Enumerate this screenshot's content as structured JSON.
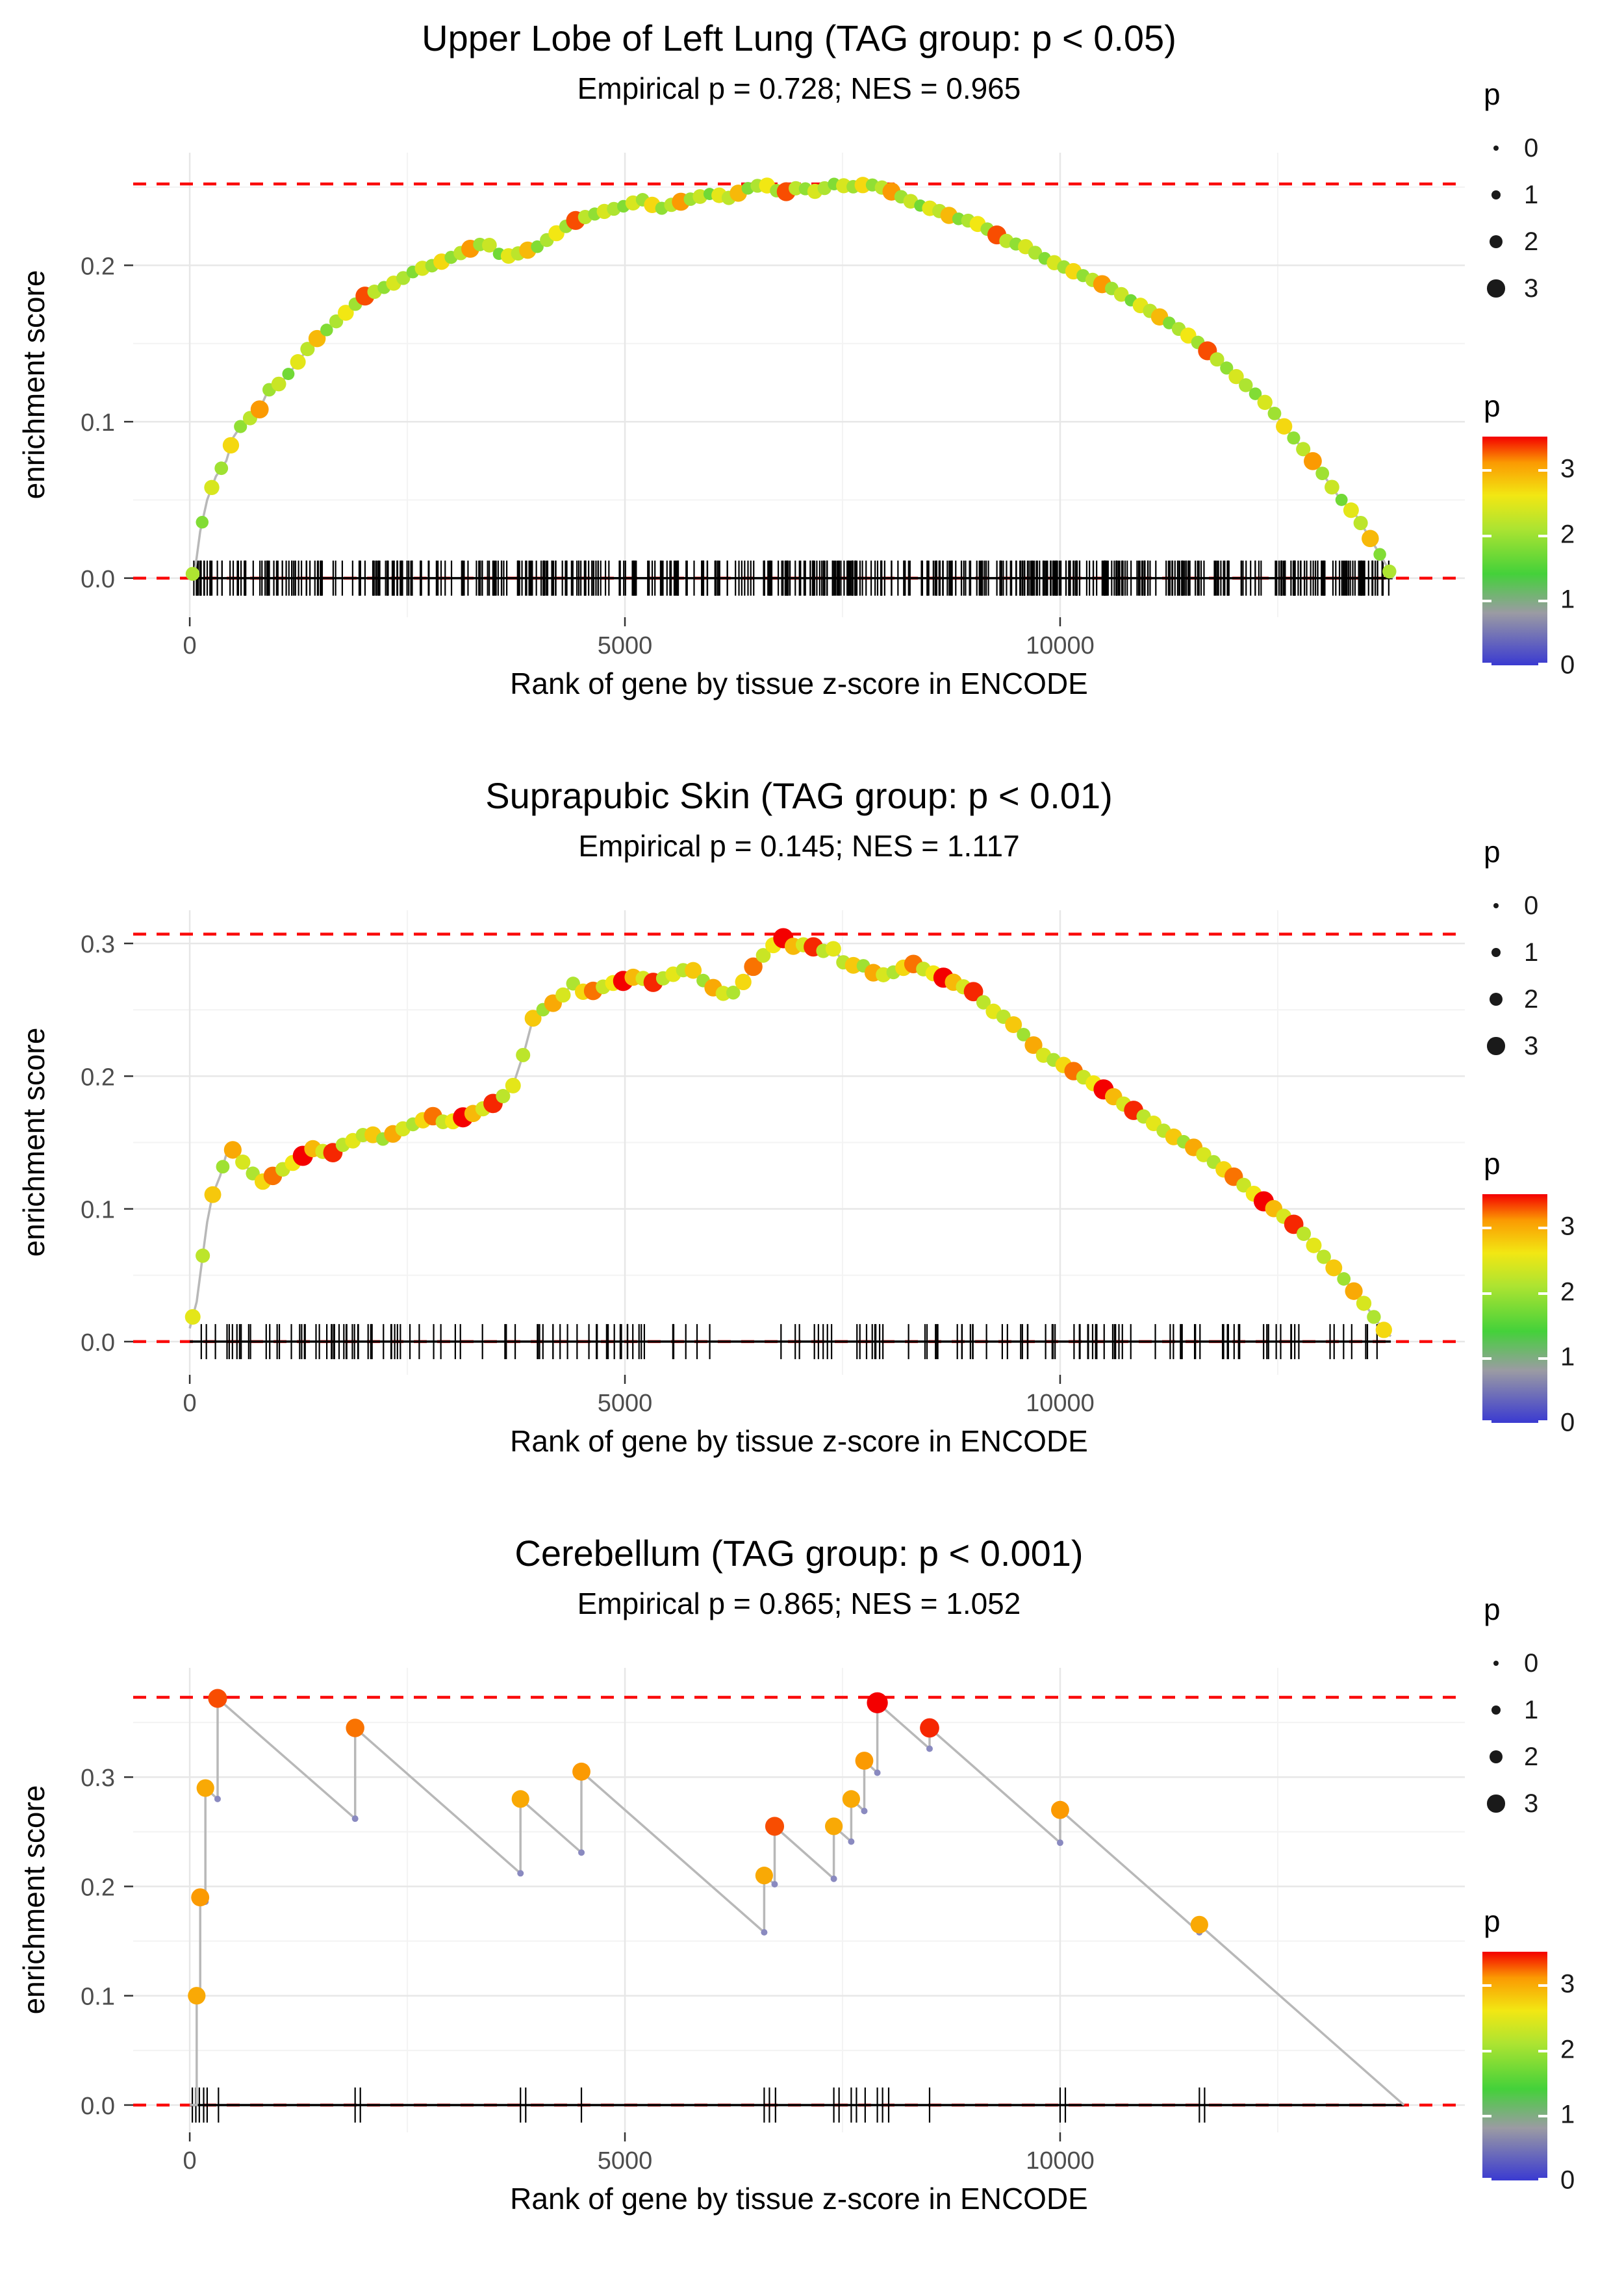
{
  "legend": {
    "size": {
      "title": "p",
      "items": [
        {
          "label": "0",
          "p": 0
        },
        {
          "label": "1",
          "p": 1
        },
        {
          "label": "2",
          "p": 2
        },
        {
          "label": "3",
          "p": 3
        }
      ]
    },
    "colorbar": {
      "title": "p",
      "range": [
        0,
        3.5
      ],
      "ticks": [
        {
          "label": "3",
          "value": 3
        },
        {
          "label": "2",
          "value": 2
        },
        {
          "label": "1",
          "value": 1
        },
        {
          "label": "0",
          "value": 0
        }
      ]
    }
  },
  "colors": {
    "dashed_line": "#fa0b0b",
    "curve": "#b8b8b8",
    "rug": "#000000",
    "zero_line": "#000000",
    "grid_major": "#e7e7e7",
    "grid_minor": "#f3f3f3",
    "jump_bottom_dot": "#8a8ac0",
    "tick": "#333333"
  },
  "color_scale": [
    [
      0.0,
      "#3a3ad1"
    ],
    [
      0.8,
      "#9b9ba3"
    ],
    [
      1.4,
      "#44d13a"
    ],
    [
      2.1,
      "#aee431"
    ],
    [
      2.6,
      "#f2e713"
    ],
    [
      3.1,
      "#fb9a02"
    ],
    [
      3.5,
      "#f40000"
    ]
  ],
  "chart_data": [
    {
      "type": "line",
      "title": "Upper Lobe of Left Lung (TAG group: p < 0.05)",
      "subtitle": "Empirical p = 0.728; NES = 0.965",
      "xlabel": "Rank of gene by tissue z-score in ENCODE",
      "ylabel": "enrichment score",
      "x_ticks": [
        0,
        5000,
        10000
      ],
      "y_ticks": [
        0.0,
        0.1,
        0.2
      ],
      "xlim": [
        -650,
        14650
      ],
      "ylim": [
        -0.025,
        0.272
      ],
      "max_es_line": 0.252,
      "dot_spacing": 110,
      "p_pattern": [
        2.1,
        1.8,
        2.4,
        2.0,
        2.7,
        1.9,
        2.2,
        3.1,
        2.0,
        2.3,
        1.7,
        2.5,
        2.2,
        2.9,
        1.8,
        2.1,
        2.6,
        2.0,
        3.3,
        2.2,
        1.9,
        2.4
      ],
      "rug": {
        "count": 550,
        "range": [
          40,
          13780
        ],
        "seed": 7
      },
      "curve": [
        [
          0,
          0
        ],
        [
          60,
          0.005
        ],
        [
          120,
          0.03
        ],
        [
          200,
          0.05
        ],
        [
          300,
          0.065
        ],
        [
          420,
          0.075
        ],
        [
          500,
          0.09
        ],
        [
          620,
          0.1
        ],
        [
          780,
          0.105
        ],
        [
          900,
          0.12
        ],
        [
          1050,
          0.125
        ],
        [
          1200,
          0.135
        ],
        [
          1400,
          0.15
        ],
        [
          1600,
          0.16
        ],
        [
          1800,
          0.17
        ],
        [
          2000,
          0.18
        ],
        [
          2200,
          0.185
        ],
        [
          2400,
          0.19
        ],
        [
          2600,
          0.197
        ],
        [
          2800,
          0.2
        ],
        [
          3000,
          0.205
        ],
        [
          3200,
          0.21
        ],
        [
          3400,
          0.215
        ],
        [
          3600,
          0.205
        ],
        [
          3800,
          0.208
        ],
        [
          4000,
          0.212
        ],
        [
          4200,
          0.22
        ],
        [
          4400,
          0.228
        ],
        [
          4600,
          0.232
        ],
        [
          4800,
          0.235
        ],
        [
          5000,
          0.238
        ],
        [
          5200,
          0.242
        ],
        [
          5400,
          0.236
        ],
        [
          5600,
          0.24
        ],
        [
          5800,
          0.243
        ],
        [
          6000,
          0.246
        ],
        [
          6200,
          0.243
        ],
        [
          6400,
          0.249
        ],
        [
          6600,
          0.252
        ],
        [
          6800,
          0.246
        ],
        [
          7000,
          0.25
        ],
        [
          7200,
          0.247
        ],
        [
          7400,
          0.252
        ],
        [
          7600,
          0.25
        ],
        [
          7800,
          0.252
        ],
        [
          8000,
          0.249
        ],
        [
          8200,
          0.243
        ],
        [
          8400,
          0.238
        ],
        [
          8600,
          0.235
        ],
        [
          8800,
          0.23
        ],
        [
          9000,
          0.228
        ],
        [
          9200,
          0.222
        ],
        [
          9400,
          0.215
        ],
        [
          9600,
          0.212
        ],
        [
          9800,
          0.205
        ],
        [
          10000,
          0.2
        ],
        [
          10200,
          0.195
        ],
        [
          10400,
          0.19
        ],
        [
          10600,
          0.185
        ],
        [
          10800,
          0.178
        ],
        [
          11000,
          0.172
        ],
        [
          11200,
          0.165
        ],
        [
          11400,
          0.158
        ],
        [
          11600,
          0.15
        ],
        [
          11800,
          0.14
        ],
        [
          12000,
          0.13
        ],
        [
          12200,
          0.12
        ],
        [
          12400,
          0.11
        ],
        [
          12600,
          0.095
        ],
        [
          12800,
          0.082
        ],
        [
          13000,
          0.068
        ],
        [
          13200,
          0.052
        ],
        [
          13400,
          0.04
        ],
        [
          13600,
          0.022
        ],
        [
          13750,
          0.008
        ],
        [
          13820,
          0
        ]
      ]
    },
    {
      "type": "line",
      "title": "Suprapubic Skin (TAG group: p < 0.01)",
      "subtitle": "Empirical p = 0.145; NES = 1.117",
      "xlabel": "Rank of gene by tissue z-score in ENCODE",
      "ylabel": "enrichment score",
      "x_ticks": [
        0,
        5000,
        10000
      ],
      "y_ticks": [
        0.0,
        0.1,
        0.2,
        0.3
      ],
      "xlim": [
        -650,
        14650
      ],
      "ylim": [
        -0.025,
        0.325
      ],
      "max_es_line": 0.307,
      "dot_spacing": 115,
      "p_pattern": [
        2.5,
        2.2,
        2.8,
        2.0,
        3.0,
        2.4,
        2.1,
        2.7,
        3.2,
        2.3,
        2.6,
        3.6,
        2.9,
        2.4,
        3.4,
        2.2
      ],
      "rug": {
        "count": 175,
        "range": [
          40,
          13700
        ],
        "seed": 13
      },
      "curve": [
        [
          0,
          0.01
        ],
        [
          80,
          0.03
        ],
        [
          140,
          0.06
        ],
        [
          200,
          0.09
        ],
        [
          260,
          0.11
        ],
        [
          350,
          0.125
        ],
        [
          450,
          0.148
        ],
        [
          550,
          0.14
        ],
        [
          700,
          0.128
        ],
        [
          850,
          0.12
        ],
        [
          1000,
          0.127
        ],
        [
          1150,
          0.133
        ],
        [
          1300,
          0.14
        ],
        [
          1450,
          0.147
        ],
        [
          1600,
          0.14
        ],
        [
          1750,
          0.148
        ],
        [
          1900,
          0.152
        ],
        [
          2050,
          0.158
        ],
        [
          2200,
          0.152
        ],
        [
          2350,
          0.157
        ],
        [
          2500,
          0.162
        ],
        [
          2650,
          0.166
        ],
        [
          2800,
          0.17
        ],
        [
          2950,
          0.164
        ],
        [
          3100,
          0.168
        ],
        [
          3300,
          0.173
        ],
        [
          3500,
          0.18
        ],
        [
          3700,
          0.19
        ],
        [
          3850,
          0.22
        ],
        [
          3950,
          0.245
        ],
        [
          4100,
          0.252
        ],
        [
          4250,
          0.258
        ],
        [
          4400,
          0.27
        ],
        [
          4550,
          0.262
        ],
        [
          4700,
          0.266
        ],
        [
          4850,
          0.27
        ],
        [
          5000,
          0.272
        ],
        [
          5150,
          0.276
        ],
        [
          5300,
          0.27
        ],
        [
          5450,
          0.274
        ],
        [
          5600,
          0.278
        ],
        [
          5750,
          0.282
        ],
        [
          5900,
          0.272
        ],
        [
          6050,
          0.265
        ],
        [
          6200,
          0.26
        ],
        [
          6350,
          0.27
        ],
        [
          6500,
          0.285
        ],
        [
          6650,
          0.295
        ],
        [
          6800,
          0.305
        ],
        [
          6950,
          0.297
        ],
        [
          7100,
          0.3
        ],
        [
          7250,
          0.294
        ],
        [
          7400,
          0.296
        ],
        [
          7550,
          0.282
        ],
        [
          7700,
          0.285
        ],
        [
          7850,
          0.278
        ],
        [
          8000,
          0.276
        ],
        [
          8150,
          0.28
        ],
        [
          8300,
          0.285
        ],
        [
          8450,
          0.28
        ],
        [
          8600,
          0.276
        ],
        [
          8800,
          0.27
        ],
        [
          9000,
          0.264
        ],
        [
          9200,
          0.25
        ],
        [
          9400,
          0.243
        ],
        [
          9600,
          0.23
        ],
        [
          9800,
          0.216
        ],
        [
          10000,
          0.21
        ],
        [
          10250,
          0.2
        ],
        [
          10500,
          0.19
        ],
        [
          10750,
          0.178
        ],
        [
          11000,
          0.168
        ],
        [
          11250,
          0.156
        ],
        [
          11500,
          0.148
        ],
        [
          11750,
          0.136
        ],
        [
          12000,
          0.124
        ],
        [
          12250,
          0.11
        ],
        [
          12500,
          0.098
        ],
        [
          12750,
          0.085
        ],
        [
          13000,
          0.066
        ],
        [
          13250,
          0.048
        ],
        [
          13500,
          0.028
        ],
        [
          13700,
          0.01
        ],
        [
          13800,
          0.004
        ]
      ]
    },
    {
      "type": "line",
      "title": "Cerebellum (TAG group: p < 0.001)",
      "subtitle": "Empirical p = 0.865; NES = 1.052",
      "xlabel": "Rank of gene by tissue z-score in ENCODE",
      "ylabel": "enrichment score",
      "x_ticks": [
        0,
        5000,
        10000
      ],
      "y_ticks": [
        0.0,
        0.1,
        0.2,
        0.3
      ],
      "xlim": [
        -650,
        14650
      ],
      "ylim": [
        -0.025,
        0.4
      ],
      "max_es_line": 0.373,
      "show_jump_bottoms": true,
      "points": [
        [
          80,
          0.1,
          3.0
        ],
        [
          120,
          0.19,
          3.1
        ],
        [
          180,
          0.29,
          3.0
        ],
        [
          320,
          0.372,
          3.3
        ],
        [
          1900,
          0.345,
          3.2
        ],
        [
          3800,
          0.28,
          3.0
        ],
        [
          4500,
          0.305,
          3.1
        ],
        [
          6600,
          0.21,
          3.0
        ],
        [
          6720,
          0.255,
          3.3
        ],
        [
          7400,
          0.255,
          3.0
        ],
        [
          7600,
          0.28,
          3.0
        ],
        [
          7750,
          0.315,
          3.1
        ],
        [
          7900,
          0.368,
          3.8
        ],
        [
          8500,
          0.345,
          3.4
        ],
        [
          10000,
          0.27,
          3.1
        ],
        [
          11600,
          0.165,
          3.0
        ]
      ],
      "rug": {
        "positions": [
          30,
          70,
          110,
          160,
          200,
          330,
          1900,
          1960,
          3800,
          3860,
          4500,
          6600,
          6660,
          6730,
          7400,
          7460,
          7600,
          7660,
          7760,
          7900,
          7960,
          8030,
          8500,
          10000,
          10060,
          11600,
          11660
        ]
      },
      "curve": [
        [
          0,
          0
        ],
        [
          80,
          0
        ],
        [
          80,
          0.1
        ],
        [
          120,
          0.097
        ],
        [
          120,
          0.19
        ],
        [
          180,
          0.186
        ],
        [
          180,
          0.29
        ],
        [
          320,
          0.28
        ],
        [
          320,
          0.372
        ],
        [
          1900,
          0.262
        ],
        [
          1900,
          0.345
        ],
        [
          3800,
          0.212
        ],
        [
          3800,
          0.28
        ],
        [
          4500,
          0.231
        ],
        [
          4500,
          0.305
        ],
        [
          6600,
          0.158
        ],
        [
          6600,
          0.21
        ],
        [
          6720,
          0.202
        ],
        [
          6720,
          0.255
        ],
        [
          7400,
          0.207
        ],
        [
          7400,
          0.255
        ],
        [
          7600,
          0.241
        ],
        [
          7600,
          0.28
        ],
        [
          7750,
          0.269
        ],
        [
          7750,
          0.315
        ],
        [
          7900,
          0.304
        ],
        [
          7900,
          0.368
        ],
        [
          8500,
          0.326
        ],
        [
          8500,
          0.345
        ],
        [
          10000,
          0.24
        ],
        [
          10000,
          0.27
        ],
        [
          11600,
          0.158
        ],
        [
          11600,
          0.165
        ],
        [
          13950,
          0
        ]
      ]
    }
  ]
}
